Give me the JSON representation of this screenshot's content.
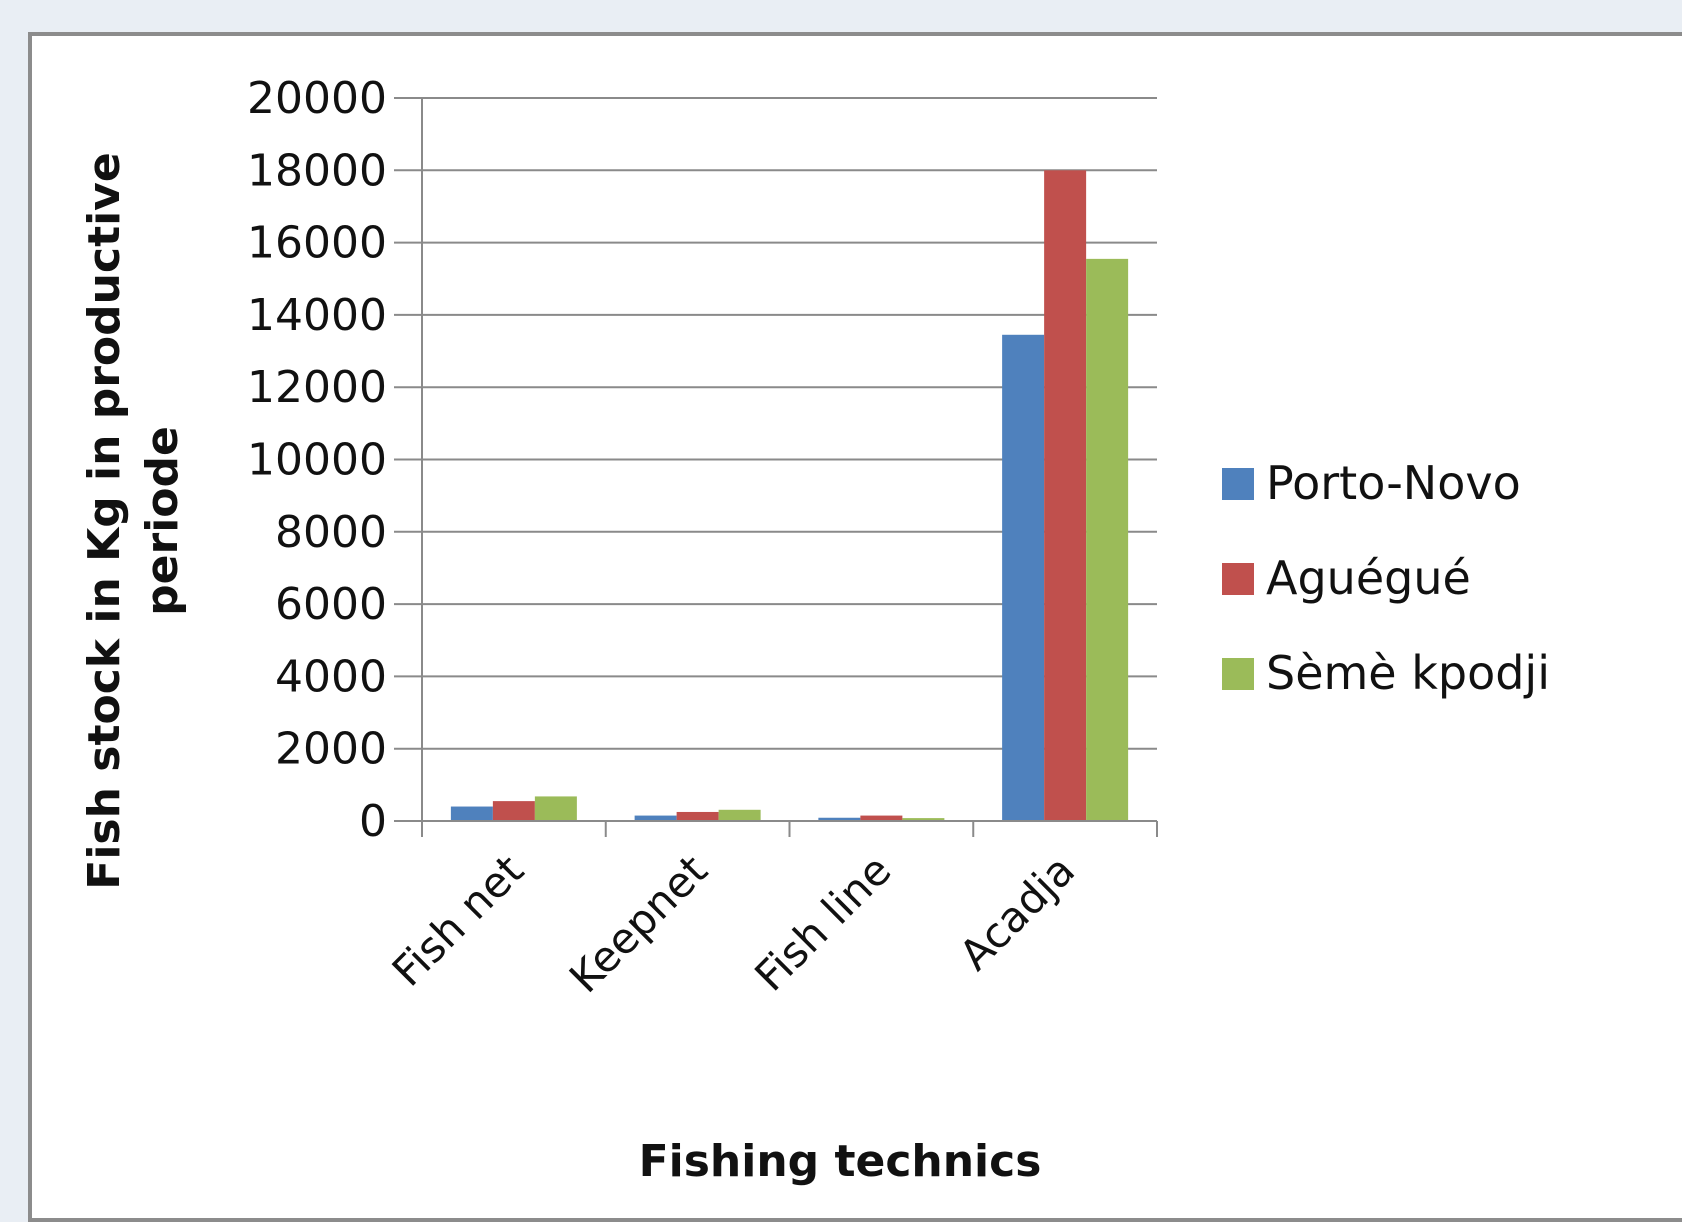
{
  "chart_data": {
    "type": "bar",
    "title": "",
    "xlabel": "Fishing technics",
    "ylabel_line1": "Fish stock in Kg in productive",
    "ylabel_line2": "periode",
    "categories": [
      "Fish net",
      "Keepnet",
      "Fish line",
      "Acadja"
    ],
    "ylim": [
      0,
      20000
    ],
    "yticks": [
      0,
      2000,
      4000,
      6000,
      8000,
      10000,
      12000,
      14000,
      16000,
      18000,
      20000
    ],
    "grid": true,
    "legend_position": "right",
    "series": [
      {
        "name": "Porto-Novo",
        "color": "#4f81bd",
        "values": [
          400,
          150,
          90,
          13450
        ]
      },
      {
        "name": "Aguégué",
        "color": "#c0504d",
        "values": [
          550,
          250,
          150,
          18000
        ]
      },
      {
        "name": "Sèmè kpodji",
        "color": "#9bbb59",
        "values": [
          680,
          310,
          80,
          15550
        ]
      }
    ]
  }
}
